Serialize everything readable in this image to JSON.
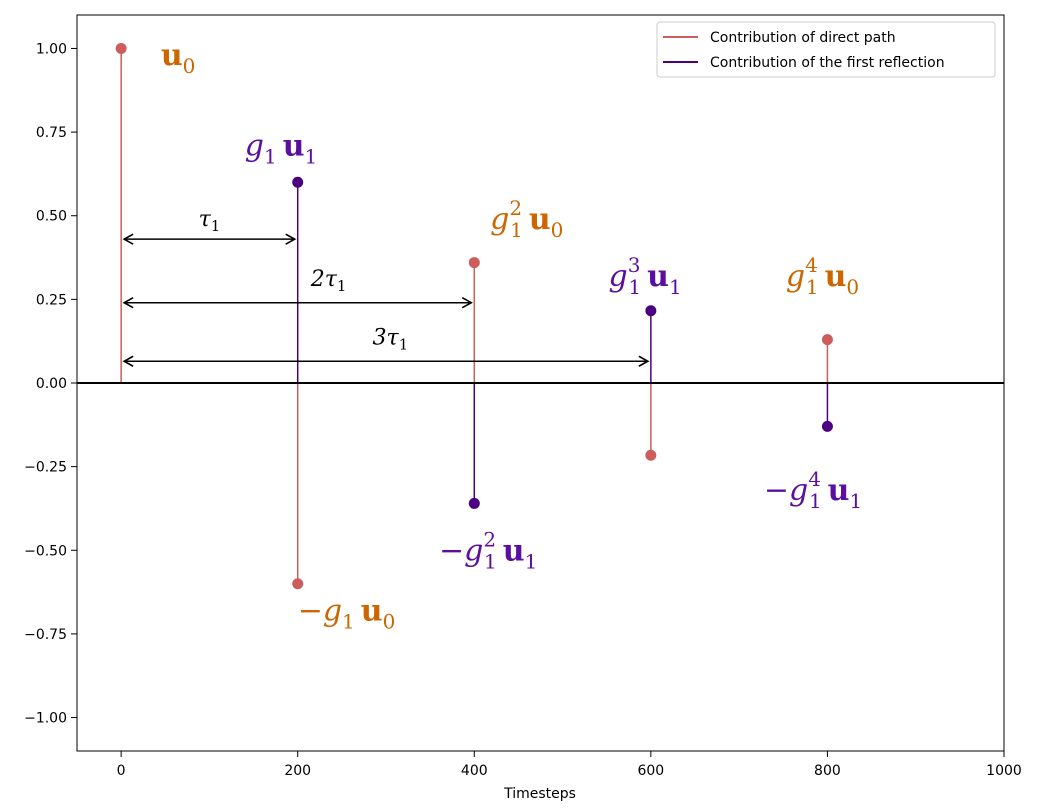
{
  "chart_data": {
    "type": "stem",
    "xlabel": "Timesteps",
    "ylabel": "",
    "xlim": [
      -50,
      1000
    ],
    "ylim": [
      -1.1,
      1.1
    ],
    "x_ticks": [
      0,
      200,
      400,
      600,
      800,
      1000
    ],
    "y_ticks": [
      1.0,
      0.75,
      0.5,
      0.25,
      0.0,
      -0.25,
      -0.5,
      -0.75,
      -1.0
    ],
    "x_tick_labels": [
      "0",
      "200",
      "400",
      "600",
      "800",
      "1000"
    ],
    "y_tick_labels": [
      "1.00",
      "0.75",
      "0.50",
      "0.25",
      "0.00",
      "−0.25",
      "−0.50",
      "−0.75",
      "−1.00"
    ],
    "colors": {
      "direct": "#cd5c5c",
      "reflection": "#4b0082",
      "direct_label": "#cc6600",
      "reflection_label": "#5a0fa0",
      "baseline": "#000000"
    },
    "series": [
      {
        "name": "Contribution of direct path",
        "x": [
          0,
          200,
          400,
          600,
          800
        ],
        "y": [
          1.0,
          -0.6,
          0.36,
          -0.216,
          0.1296
        ]
      },
      {
        "name": "Contribution of the first reflection",
        "x": [
          200,
          400,
          600,
          800
        ],
        "y": [
          0.6,
          -0.36,
          0.216,
          -0.1296
        ]
      }
    ],
    "legend": {
      "position": "top-right",
      "entries": [
        "Contribution of direct path",
        "Contribution of the first reflection"
      ]
    },
    "annotations": [
      {
        "base": "",
        "power": "",
        "u": "u",
        "u_sub": "0",
        "series": "direct",
        "x": 45,
        "y": 0.95
      },
      {
        "base": "g",
        "base_sub": "1",
        "power": "",
        "u": "u",
        "u_sub": "1",
        "series": "reflection",
        "x": 140,
        "y": 0.68
      },
      {
        "base": "g",
        "base_sub": "1",
        "power": "2",
        "u": "u",
        "u_sub": "0",
        "series": "direct",
        "x": 418,
        "y": 0.46
      },
      {
        "base": "g",
        "base_sub": "1",
        "power": "3",
        "u": "u",
        "u_sub": "1",
        "series": "reflection",
        "x": 552,
        "y": 0.29
      },
      {
        "base": "g",
        "base_sub": "1",
        "power": "4",
        "u": "u",
        "u_sub": "0",
        "series": "direct",
        "x": 753,
        "y": 0.29
      },
      {
        "base": "−g",
        "base_sub": "1",
        "power": "4",
        "u": "u",
        "u_sub": "1",
        "series": "reflection",
        "x": 728,
        "y": -0.35
      },
      {
        "base": "−g",
        "base_sub": "1",
        "power": "2",
        "u": "u",
        "u_sub": "1",
        "series": "reflection",
        "x": 360,
        "y": -0.53
      },
      {
        "base": "−g",
        "base_sub": "1",
        "power": "",
        "u": "u",
        "u_sub": "0",
        "series": "direct",
        "x": 200,
        "y": -0.71
      }
    ],
    "arrows": [
      {
        "label": "τ",
        "label_sub": "1",
        "x_start": 0,
        "x_end": 200,
        "y": 0.43,
        "label_x": 100,
        "label_y": 0.47
      },
      {
        "label": "2τ",
        "label_sub": "1",
        "x_start": 0,
        "x_end": 400,
        "y": 0.24,
        "label_x": 235,
        "label_y": 0.29
      },
      {
        "label": "3τ",
        "label_sub": "1",
        "x_start": 0,
        "x_end": 600,
        "y": 0.065,
        "label_x": 305,
        "label_y": 0.115
      }
    ]
  }
}
